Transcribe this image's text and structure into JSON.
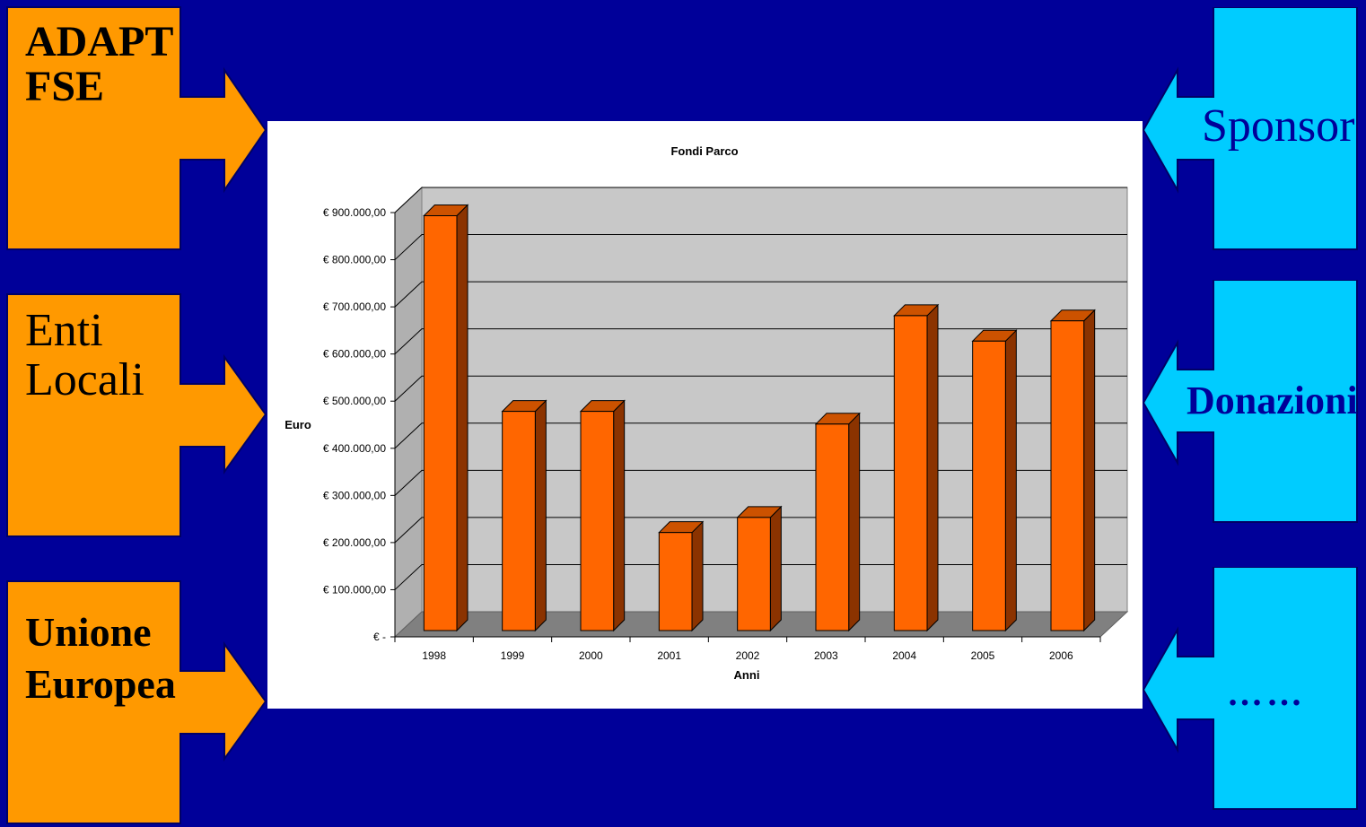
{
  "colors": {
    "background": "#000099",
    "left_box": "#FF9900",
    "right_box": "#00CCFF",
    "bar_front": "#FF6600",
    "bar_side": "#8B3300",
    "bar_top": "#CC5200",
    "plot_back": "#C8C8C8",
    "plot_floor": "#808080"
  },
  "left_sources": [
    {
      "line1": "ADAPT",
      "line2": "FSE"
    },
    {
      "line1": "Enti",
      "line2": "Locali"
    },
    {
      "line1": "Unione",
      "line2": "Europea"
    }
  ],
  "right_sources": [
    {
      "label": "Sponsor"
    },
    {
      "label": "Donazioni"
    },
    {
      "label": "……"
    }
  ],
  "chart_data": {
    "type": "bar",
    "title": "Fondi Parco",
    "xlabel": "Anni",
    "ylabel": "Euro",
    "categories": [
      "1998",
      "1999",
      "2000",
      "2001",
      "2002",
      "2003",
      "2004",
      "2005",
      "2006"
    ],
    "values": [
      880000,
      465000,
      465000,
      208000,
      240000,
      438000,
      668000,
      614000,
      657000
    ],
    "ylim": [
      0,
      900000
    ],
    "ytick_labels": [
      "€ -",
      "€ 100.000,00",
      "€ 200.000,00",
      "€ 300.000,00",
      "€ 400.000,00",
      "€ 500.000,00",
      "€ 600.000,00",
      "€ 700.000,00",
      "€ 800.000,00",
      "€ 900.000,00"
    ],
    "grid": true,
    "legend": "none",
    "style": "3d-column"
  }
}
